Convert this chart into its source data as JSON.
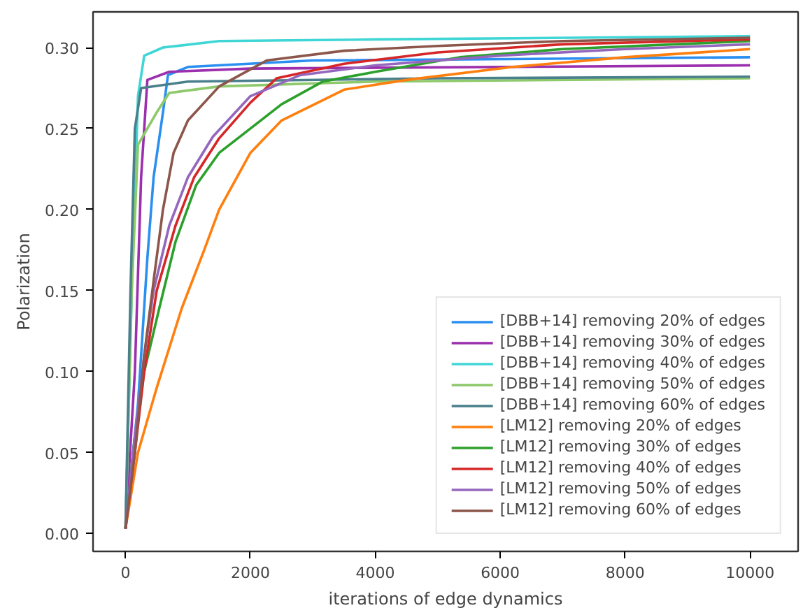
{
  "chart_data": {
    "type": "line",
    "xlabel": "iterations of edge dynamics",
    "ylabel": "Polarization",
    "xlim": [
      -520,
      10770
    ],
    "ylim": [
      -0.011,
      0.322
    ],
    "xticks": [
      0,
      2000,
      4000,
      6000,
      8000,
      10000
    ],
    "yticks": [
      {
        "value": 0,
        "label": "0.00"
      },
      {
        "value": 0.05,
        "label": "0.05"
      },
      {
        "value": 0.1,
        "label": "0.10"
      },
      {
        "value": 0.15,
        "label": "0.15"
      },
      {
        "value": 0.2,
        "label": "0.20"
      },
      {
        "value": 0.25,
        "label": "0.25"
      },
      {
        "value": 0.3,
        "label": "0.30"
      }
    ],
    "grid": false,
    "legend": "bottom right",
    "marker": "none",
    "line_style": "solid",
    "series": [
      {
        "name": "[DBB+14] removing 20% of edges",
        "color": "#2b8ff0",
        "x": [
          0,
          200,
          350,
          450,
          600,
          680,
          1000,
          3000,
          10000
        ],
        "values": [
          0.003,
          0.08,
          0.17,
          0.22,
          0.26,
          0.283,
          0.288,
          0.292,
          0.294
        ]
      },
      {
        "name": "[DBB+14] removing 30% of edges",
        "color": "#9b2fae",
        "x": [
          0,
          150,
          250,
          350,
          700,
          2000,
          10000
        ],
        "values": [
          0.003,
          0.1,
          0.22,
          0.28,
          0.285,
          0.287,
          0.289
        ]
      },
      {
        "name": "[DBB+14] removing 40% of edges",
        "color": "#40d6d6",
        "x": [
          0,
          100,
          200,
          300,
          600,
          1500,
          4000,
          10000
        ],
        "values": [
          0.003,
          0.15,
          0.27,
          0.295,
          0.3,
          0.304,
          0.305,
          0.307
        ]
      },
      {
        "name": "[DBB+14] removing 50% of edges",
        "color": "#8ec96b",
        "x": [
          0,
          100,
          200,
          500,
          700,
          1500,
          4000,
          10000
        ],
        "values": [
          0.003,
          0.15,
          0.24,
          0.26,
          0.272,
          0.276,
          0.279,
          0.281
        ]
      },
      {
        "name": "[DBB+14] removing 60% of edges",
        "color": "#4a7f8c",
        "x": [
          0,
          80,
          150,
          250,
          1000,
          5000,
          10000
        ],
        "values": [
          0.003,
          0.15,
          0.25,
          0.275,
          0.279,
          0.281,
          0.282
        ]
      },
      {
        "name": "[LM12] removing 20% of edges",
        "color": "#ff7f0e",
        "x": [
          0,
          200,
          500,
          900,
          1250,
          1500,
          2000,
          2500,
          3500,
          4500,
          6200,
          8000,
          10000
        ],
        "values": [
          0.003,
          0.05,
          0.09,
          0.139,
          0.174,
          0.2,
          0.235,
          0.255,
          0.274,
          0.28,
          0.288,
          0.294,
          0.299
        ]
      },
      {
        "name": "[LM12] removing 30% of edges",
        "color": "#2ca02c",
        "x": [
          0,
          150,
          300,
          540,
          800,
          1130,
          1500,
          1900,
          2500,
          3160,
          4000,
          5350,
          7000,
          10000
        ],
        "values": [
          0.003,
          0.06,
          0.1,
          0.139,
          0.18,
          0.215,
          0.235,
          0.247,
          0.265,
          0.279,
          0.285,
          0.294,
          0.299,
          0.304
        ]
      },
      {
        "name": "[LM12] removing 40% of edges",
        "color": "#d62728",
        "x": [
          0,
          150,
          300,
          500,
          800,
          1100,
          1500,
          2000,
          2420,
          3500,
          5000,
          7000,
          10000
        ],
        "values": [
          0.003,
          0.05,
          0.1,
          0.15,
          0.19,
          0.22,
          0.244,
          0.266,
          0.281,
          0.29,
          0.297,
          0.302,
          0.305
        ]
      },
      {
        "name": "[LM12] removing 50% of edges",
        "color": "#9467bd",
        "x": [
          0,
          150,
          300,
          450,
          700,
          1000,
          1400,
          2000,
          2800,
          4000,
          6000,
          8000,
          10000
        ],
        "values": [
          0.003,
          0.06,
          0.11,
          0.15,
          0.19,
          0.22,
          0.245,
          0.27,
          0.283,
          0.289,
          0.295,
          0.299,
          0.302
        ]
      },
      {
        "name": "[LM12] removing 60% of edges",
        "color": "#8c564b",
        "x": [
          0,
          150,
          300,
          450,
          600,
          770,
          1000,
          1500,
          2260,
          3500,
          5000,
          7000,
          10000
        ],
        "values": [
          0.003,
          0.05,
          0.11,
          0.156,
          0.2,
          0.235,
          0.255,
          0.276,
          0.292,
          0.298,
          0.301,
          0.304,
          0.306
        ]
      }
    ]
  }
}
